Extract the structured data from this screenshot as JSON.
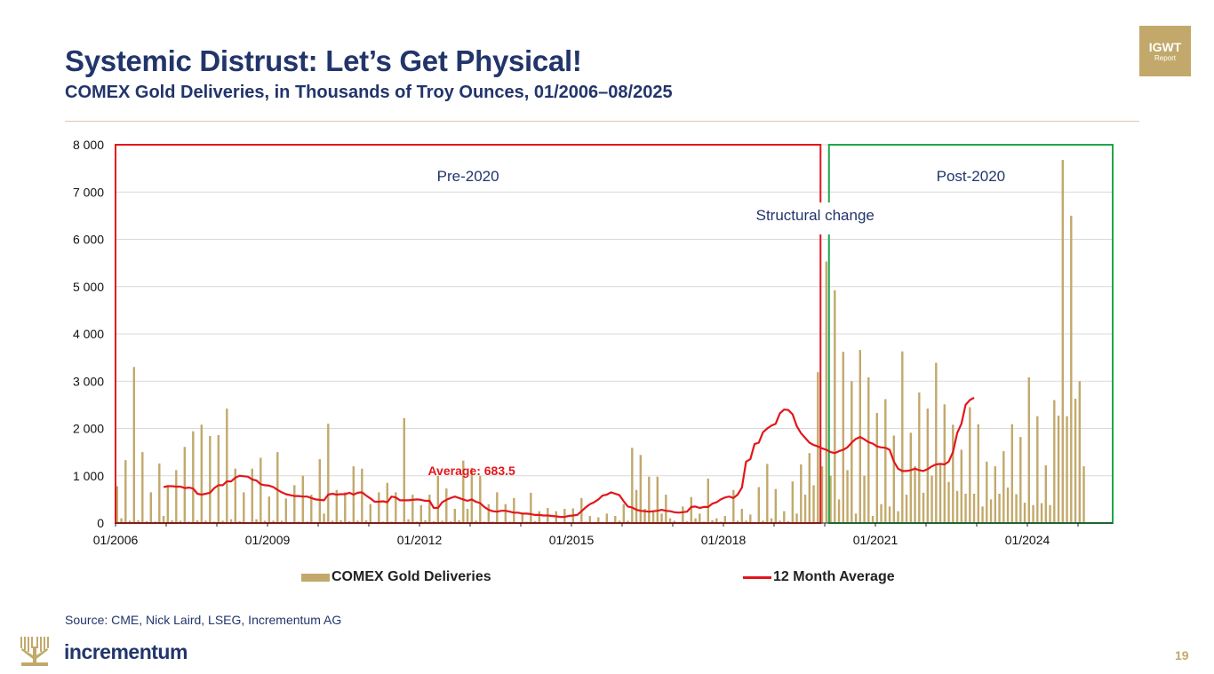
{
  "header": {
    "title": "Systemic Distrust: Let’s Get Physical!",
    "subtitle": "COMEX Gold Deliveries, in Thousands of Troy Ounces, 01/2006–08/2025",
    "badge_line1": "IGWT",
    "badge_line2": "Report"
  },
  "footer": {
    "source": "Source: CME, Nick Laird, LSEG, Incrementum AG",
    "logo_text": "incrementum",
    "page_number": "19"
  },
  "colors": {
    "bars": "#c2a96b",
    "average_line": "#e3161c",
    "pre_box": "#e3161c",
    "post_box": "#1fa64a",
    "title": "#22356b"
  },
  "chart_data": {
    "type": "bar+line",
    "title": "COMEX Gold Deliveries, in Thousands of Troy Ounces, 01/2006–08/2025",
    "ylim": [
      0,
      8000
    ],
    "yticks": [
      0,
      1000,
      2000,
      3000,
      4000,
      5000,
      6000,
      7000,
      8000
    ],
    "ytick_labels": [
      "0",
      "1 000",
      "2 000",
      "3 000",
      "4 000",
      "5 000",
      "6 000",
      "7 000",
      "8 000"
    ],
    "x_start": "01/2006",
    "x_end": "08/2025",
    "xtick_labels": [
      "01/2006",
      "01/2009",
      "01/2012",
      "01/2015",
      "01/2018",
      "01/2021",
      "01/2024"
    ],
    "grid": true,
    "legend": [
      "COMEX Gold Deliveries",
      "12 Month Average"
    ],
    "annotations": {
      "pre": "Pre-2020",
      "post": "Post-2020",
      "structural": "Structural change",
      "average": "Average: 683.5"
    },
    "regions": {
      "pre": {
        "start_month": 0,
        "end_month": 167
      },
      "post": {
        "start_month": 169,
        "end_month": 235
      }
    },
    "series": [
      {
        "name": "COMEX Gold Deliveries",
        "type": "bar",
        "values": [
          780,
          100,
          1330,
          50,
          3300,
          60,
          1500,
          40,
          650,
          30,
          1260,
          150,
          800,
          60,
          1120,
          50,
          1610,
          30,
          1940,
          60,
          2080,
          50,
          1840,
          30,
          1860,
          50,
          2420,
          80,
          1150,
          40,
          650,
          20,
          1150,
          80,
          1380,
          50,
          560,
          50,
          1500,
          50,
          520,
          20,
          800,
          30,
          1000,
          30,
          600,
          20,
          1350,
          200,
          2100,
          50,
          700,
          60,
          650,
          40,
          1200,
          50,
          1150,
          60,
          400,
          20,
          650,
          30,
          850,
          30,
          650,
          20,
          2220,
          80,
          600,
          30,
          380,
          60,
          600,
          40,
          1000,
          50,
          730,
          40,
          300,
          60,
          1320,
          300,
          1170,
          50,
          1000,
          30,
          400,
          30,
          650,
          20,
          400,
          30,
          530,
          20,
          200,
          30,
          640,
          40,
          250,
          20,
          320,
          20,
          250,
          20,
          300,
          20,
          310,
          20,
          530,
          30,
          150,
          20,
          120,
          20,
          200,
          20,
          150,
          50,
          400,
          50,
          1590,
          700,
          1440,
          300,
          980,
          250,
          980,
          200,
          600,
          100,
          50,
          20,
          350,
          40,
          550,
          100,
          200,
          30,
          940,
          60,
          100,
          30,
          150,
          20,
          700,
          50,
          300,
          50,
          180,
          20,
          760,
          50,
          1250,
          100,
          720,
          50,
          250,
          40,
          880,
          200,
          1240,
          600,
          1480,
          800,
          3190,
          1200,
          5530,
          1000,
          4920,
          500,
          3620,
          1120,
          3000,
          200,
          3660,
          1000,
          3080,
          150,
          2330,
          400,
          2620,
          350,
          1850,
          250,
          3630,
          600,
          1910,
          1200,
          2760,
          640,
          2420,
          1000,
          3390,
          1230,
          2510,
          870,
          2080,
          680,
          1550,
          620,
          2450,
          620,
          2090,
          350,
          1300,
          500,
          1200,
          620,
          1520,
          750,
          2090,
          610,
          1820,
          430,
          3080,
          380,
          2260,
          420,
          1220,
          380,
          2600,
          2270,
          7680,
          2260,
          6500,
          2630,
          3000,
          1200
        ]
      },
      {
        "name": "12 Month Average",
        "type": "line",
        "start_month": 11,
        "values": [
          760,
          780,
          780,
          770,
          770,
          740,
          750,
          730,
          620,
          600,
          620,
          640,
          740,
          800,
          800,
          880,
          880,
          960,
          1000,
          990,
          980,
          920,
          900,
          820,
          800,
          790,
          760,
          700,
          650,
          610,
          590,
          570,
          570,
          560,
          560,
          530,
          500,
          490,
          480,
          600,
          620,
          600,
          610,
          610,
          640,
          600,
          640,
          650,
          580,
          520,
          450,
          450,
          460,
          440,
          560,
          540,
          480,
          480,
          480,
          490,
          500,
          490,
          470,
          470,
          320,
          320,
          440,
          490,
          530,
          560,
          530,
          500,
          470,
          500,
          450,
          420,
          340,
          280,
          250,
          240,
          260,
          260,
          240,
          220,
          220,
          200,
          200,
          190,
          170,
          170,
          160,
          160,
          150,
          140,
          130,
          130,
          150,
          160,
          170,
          250,
          330,
          400,
          440,
          500,
          580,
          600,
          650,
          620,
          590,
          460,
          350,
          330,
          280,
          260,
          250,
          240,
          250,
          260,
          280,
          260,
          250,
          230,
          220,
          230,
          240,
          340,
          350,
          320,
          340,
          340,
          410,
          440,
          500,
          540,
          560,
          530,
          600,
          750,
          1300,
          1350,
          1670,
          1700,
          1920,
          2000,
          2060,
          2100,
          2320,
          2400,
          2390,
          2300,
          2050,
          1900,
          1800,
          1700,
          1650,
          1620,
          1580,
          1550,
          1500,
          1480,
          1520,
          1550,
          1600,
          1700,
          1780,
          1820,
          1770,
          1710,
          1680,
          1620,
          1600,
          1590,
          1550,
          1300,
          1150,
          1100,
          1100,
          1120,
          1150,
          1120,
          1100,
          1140,
          1200,
          1240,
          1250,
          1240,
          1300,
          1500,
          1900,
          2100,
          2500,
          2600,
          2650
        ]
      }
    ]
  }
}
